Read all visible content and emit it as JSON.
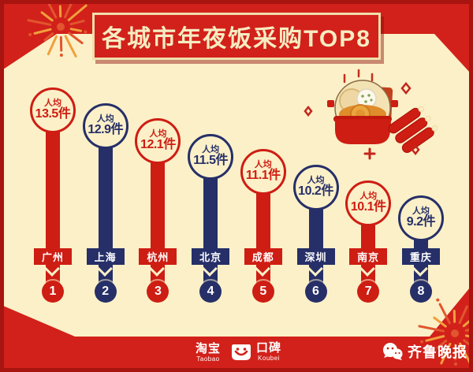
{
  "title_banner": "各城市年夜饭采购TOP8",
  "chart_data": {
    "type": "bar",
    "title": "各城市年夜饭采购TOP8",
    "value_prefix": "人均",
    "value_suffix": "件",
    "categories": [
      "广州",
      "上海",
      "杭州",
      "北京",
      "成都",
      "深圳",
      "南京",
      "重庆"
    ],
    "values": [
      13.5,
      12.9,
      12.1,
      11.5,
      11.1,
      10.2,
      10.1,
      9.2
    ],
    "ranks": [
      1,
      2,
      3,
      4,
      5,
      6,
      7,
      8
    ],
    "value_range": [
      9.2,
      13.5
    ],
    "legend": "none",
    "layout_hint": "lollipop bars sorted descending, alternating red/navy"
  },
  "footer": {
    "taobao_cn": "淘宝",
    "taobao_en": "Taobao",
    "koubei_cn": "口碑",
    "koubei_en": "Koubei"
  },
  "watermark": "齐鲁晚报",
  "colors": {
    "background_red": "#d2211a",
    "deep_red_border": "#a81410",
    "cream": "#fbf0c8",
    "bar_red": "#ce1d13",
    "bar_navy": "#262f68",
    "banner_text": "#f6ecc2",
    "firework_orange": "#f0a03c"
  }
}
